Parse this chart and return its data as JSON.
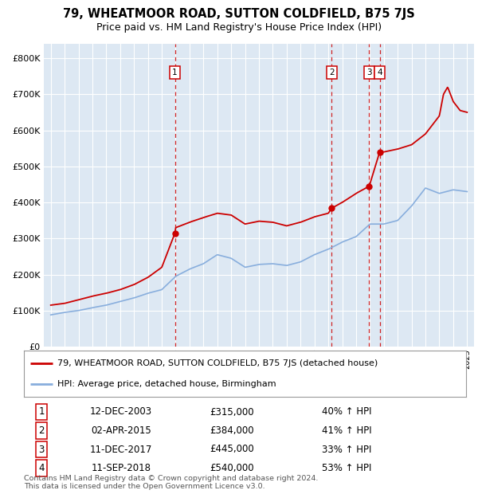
{
  "title": "79, WHEATMOOR ROAD, SUTTON COLDFIELD, B75 7JS",
  "subtitle": "Price paid vs. HM Land Registry's House Price Index (HPI)",
  "red_label": "79, WHEATMOOR ROAD, SUTTON COLDFIELD, B75 7JS (detached house)",
  "blue_label": "HPI: Average price, detached house, Birmingham",
  "footer": "Contains HM Land Registry data © Crown copyright and database right 2024.\nThis data is licensed under the Open Government Licence v3.0.",
  "transactions": [
    {
      "num": 1,
      "date": "12-DEC-2003",
      "price": "£315,000",
      "hpi_pct": "40% ↑ HPI",
      "x_year": 2003.95,
      "price_val": 315000
    },
    {
      "num": 2,
      "date": "02-APR-2015",
      "price": "£384,000",
      "hpi_pct": "41% ↑ HPI",
      "x_year": 2015.25,
      "price_val": 384000
    },
    {
      "num": 3,
      "date": "11-DEC-2017",
      "price": "£445,000",
      "hpi_pct": "33% ↑ HPI",
      "x_year": 2017.95,
      "price_val": 445000
    },
    {
      "num": 4,
      "date": "11-SEP-2018",
      "price": "£540,000",
      "hpi_pct": "53% ↑ HPI",
      "x_year": 2018.7,
      "price_val": 540000
    }
  ],
  "yticks": [
    0,
    100000,
    200000,
    300000,
    400000,
    500000,
    600000,
    700000,
    800000
  ],
  "ytick_labels": [
    "£0",
    "£100K",
    "£200K",
    "£300K",
    "£400K",
    "£500K",
    "£600K",
    "£700K",
    "£800K"
  ],
  "ylim": [
    0,
    840000
  ],
  "xlim_start": 1994.5,
  "xlim_end": 2025.5,
  "bg_color": "#dde8f3",
  "grid_color": "#ffffff",
  "red_color": "#cc0000",
  "blue_color": "#88aedd",
  "dashed_color": "#cc0000",
  "hpi_x": [
    1995,
    1996,
    1997,
    1998,
    1999,
    2000,
    2001,
    2002,
    2003,
    2004,
    2005,
    2006,
    2007,
    2008,
    2009,
    2010,
    2011,
    2012,
    2013,
    2014,
    2015,
    2016,
    2017,
    2018,
    2019,
    2020,
    2021,
    2022,
    2023,
    2024,
    2025
  ],
  "hpi_y": [
    88000,
    95000,
    100000,
    108000,
    115000,
    125000,
    135000,
    148000,
    158000,
    195000,
    215000,
    230000,
    255000,
    245000,
    220000,
    228000,
    230000,
    225000,
    235000,
    255000,
    270000,
    290000,
    305000,
    340000,
    340000,
    350000,
    390000,
    440000,
    425000,
    435000,
    430000
  ],
  "red_x": [
    1995,
    1996,
    1997,
    1998,
    1999,
    2000,
    2001,
    2002,
    2003,
    2003.95,
    2004,
    2005,
    2006,
    2007,
    2008,
    2009,
    2010,
    2011,
    2012,
    2013,
    2014,
    2015,
    2015.25,
    2016,
    2017,
    2017.95,
    2018.7,
    2019,
    2020,
    2021,
    2022,
    2023,
    2023.3,
    2023.6,
    2024,
    2024.5,
    2025
  ],
  "red_y": [
    115000,
    120000,
    130000,
    140000,
    148000,
    158000,
    172000,
    192000,
    220000,
    315000,
    330000,
    345000,
    358000,
    370000,
    365000,
    340000,
    348000,
    345000,
    335000,
    345000,
    360000,
    370000,
    384000,
    400000,
    425000,
    445000,
    540000,
    540000,
    548000,
    560000,
    590000,
    640000,
    700000,
    720000,
    680000,
    655000,
    650000
  ]
}
